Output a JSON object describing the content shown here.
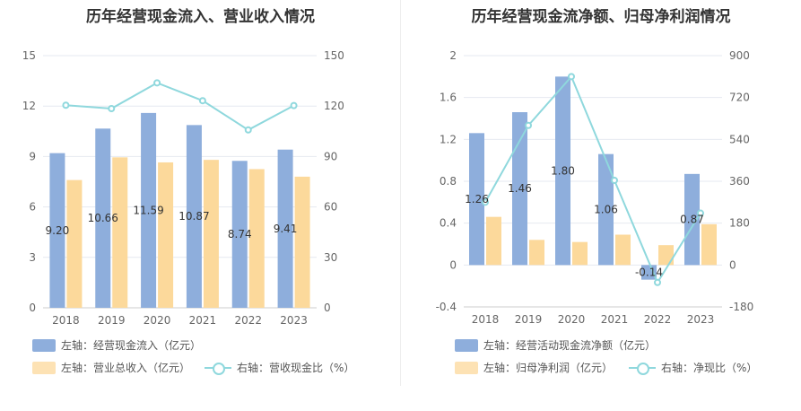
{
  "chart_data": [
    {
      "type": "bar",
      "title": "历年经营现金流入、营业收入情况",
      "categories": [
        "2018",
        "2019",
        "2020",
        "2021",
        "2022",
        "2023"
      ],
      "left_axis": {
        "ticks": [
          "0",
          "3",
          "6",
          "9",
          "12",
          "15"
        ],
        "ylim": [
          0,
          15
        ]
      },
      "right_axis": {
        "ticks": [
          "0",
          "30",
          "60",
          "90",
          "120",
          "150"
        ],
        "ylim": [
          0,
          150
        ]
      },
      "series": [
        {
          "name": "左轴：经营现金流入（亿元）",
          "axis": "left",
          "type": "bar",
          "color": "#8eaedc",
          "values": [
            9.2,
            10.66,
            11.59,
            10.87,
            8.74,
            9.41
          ],
          "labels": [
            "9.20",
            "10.66",
            "11.59",
            "10.87",
            "8.74",
            "9.41"
          ]
        },
        {
          "name": "左轴：营业总收入（亿元）",
          "axis": "left",
          "type": "bar",
          "color": "#fcd99b",
          "values": [
            7.6,
            8.95,
            8.65,
            8.8,
            8.25,
            7.8
          ]
        },
        {
          "name": "右轴：营收现金比（%）",
          "axis": "right",
          "type": "line",
          "color": "#8fd8dd",
          "values": [
            120.5,
            118.5,
            133.8,
            123.2,
            105.8,
            120.3
          ]
        }
      ]
    },
    {
      "type": "bar",
      "title": "历年经营现金流净额、归母净利润情况",
      "categories": [
        "2018",
        "2019",
        "2020",
        "2021",
        "2022",
        "2023"
      ],
      "left_axis": {
        "ticks": [
          "-0.4",
          "0",
          "0.4",
          "0.8",
          "1.2",
          "1.6",
          "2"
        ],
        "ylim": [
          -0.4,
          2
        ]
      },
      "right_axis": {
        "ticks": [
          "-180",
          "0",
          "180",
          "360",
          "540",
          "720",
          "900"
        ],
        "ylim": [
          -180,
          900
        ]
      },
      "series": [
        {
          "name": "左轴：经营活动现金流净额（亿元）",
          "axis": "left",
          "type": "bar",
          "color": "#8eaedc",
          "values": [
            1.26,
            1.46,
            1.8,
            1.06,
            -0.14,
            0.87
          ],
          "labels": [
            "1.26",
            "1.46",
            "1.80",
            "1.06",
            "-0.14",
            "0.87"
          ]
        },
        {
          "name": "左轴：归母净利润（亿元）",
          "axis": "left",
          "type": "bar",
          "color": "#fcd99b",
          "values": [
            0.46,
            0.24,
            0.22,
            0.29,
            0.19,
            0.39
          ]
        },
        {
          "name": "右轴：净现比（%）",
          "axis": "right",
          "type": "line",
          "color": "#8fd8dd",
          "values": [
            270,
            600,
            810,
            364,
            -75,
            223
          ]
        }
      ]
    }
  ]
}
